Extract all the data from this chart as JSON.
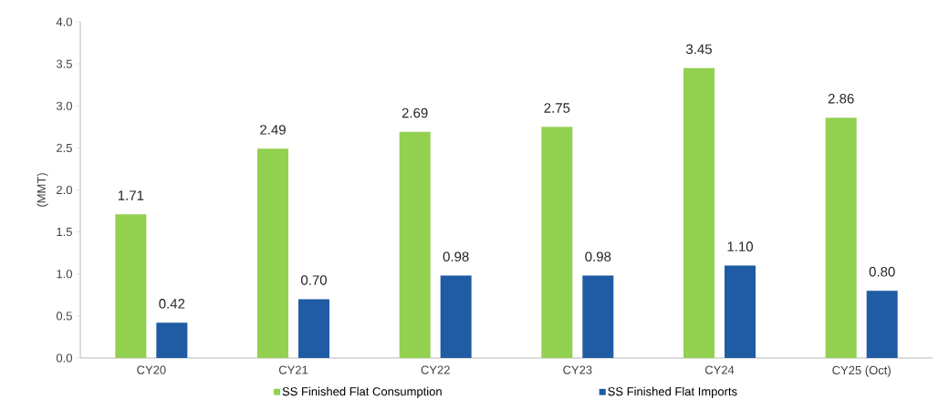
{
  "chart_data": {
    "type": "bar",
    "ylabel": "(MMT)",
    "categories": [
      "CY20",
      "CY21",
      "CY22",
      "CY23",
      "CY24",
      "CY25 (Oct)"
    ],
    "series": [
      {
        "name": "SS Finished Flat Consumption",
        "color": "#92d050",
        "values": [
          1.71,
          2.49,
          2.69,
          2.75,
          3.45,
          2.86
        ],
        "value_labels": [
          "1.71",
          "2.49",
          "2.69",
          "2.75",
          "3.45",
          "2.86"
        ]
      },
      {
        "name": "SS Finished Flat Imports",
        "color": "#1f5ca3",
        "values": [
          0.42,
          0.7,
          0.98,
          0.98,
          1.1,
          0.8
        ],
        "value_labels": [
          "0.42",
          "0.70",
          "0.98",
          "0.98",
          "1.10",
          "0.80"
        ]
      }
    ],
    "ylim": [
      0,
      4
    ],
    "yticks": [
      {
        "value": 0,
        "label": "0.0"
      },
      {
        "value": 0.5,
        "label": "0.5"
      },
      {
        "value": 1,
        "label": "1.0"
      },
      {
        "value": 1.5,
        "label": "1.5"
      },
      {
        "value": 2,
        "label": "2.0"
      },
      {
        "value": 2.5,
        "label": "2.5"
      },
      {
        "value": 3,
        "label": "3.0"
      },
      {
        "value": 3.5,
        "label": "3.5"
      },
      {
        "value": 4,
        "label": "4.0"
      }
    ],
    "grid": false,
    "legend": "bottom"
  }
}
